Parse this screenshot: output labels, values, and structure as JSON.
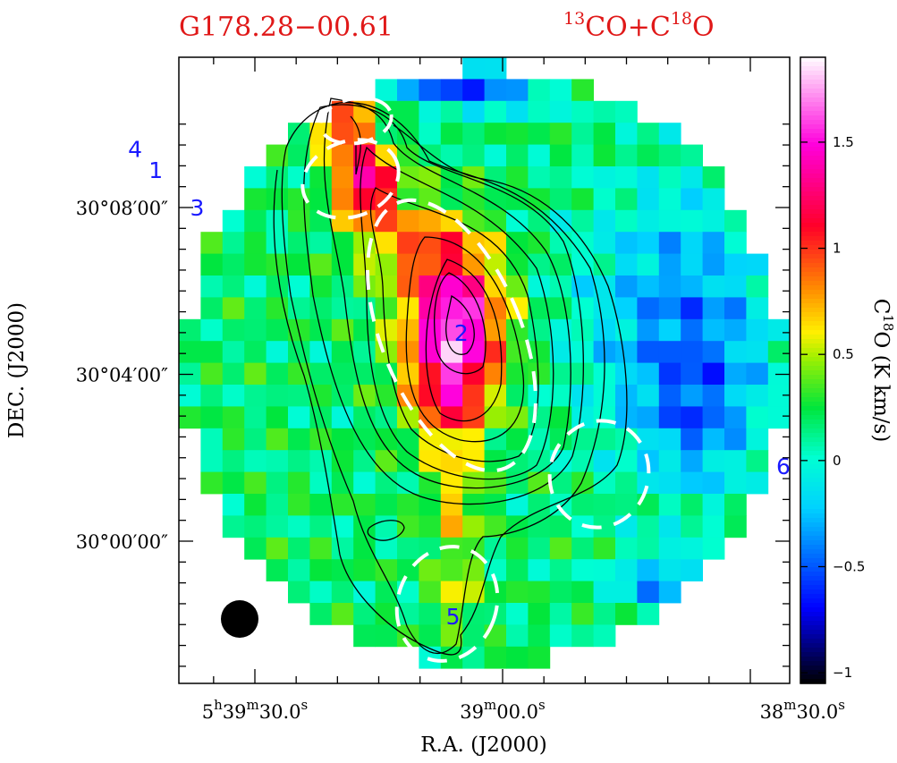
{
  "chart_data": {
    "type": "heatmap",
    "title_left": "G178.28−00.61",
    "title_right": {
      "prefix": "13",
      "a": "CO+C",
      "sup": "18",
      "b": "O"
    },
    "xlabel": "R.A. (J2000)",
    "ylabel": "DEC. (J2000)",
    "colorbar_label": {
      "a": "C",
      "sup": "18",
      "b": "O (K km/s)"
    },
    "colorbar_range": [
      -1.05,
      1.9
    ],
    "colorbar_ticks": [
      "1.5",
      "1",
      "0.5",
      "0",
      "−0.5",
      "−1"
    ],
    "colorbar_tick_values": [
      1.5,
      1,
      0.5,
      0,
      -0.5,
      -1
    ],
    "x_ticks": [
      {
        "h": "5",
        "hu": "h",
        "m": "39",
        "mu": "m",
        "s": "30.0",
        "su": "s",
        "ra_sec": 30.0
      },
      {
        "h": "",
        "hu": "",
        "m": "39",
        "mu": "m",
        "s": "00.0",
        "su": "s",
        "ra_sec": 0.0
      },
      {
        "h": "",
        "hu": "",
        "m": "38",
        "mu": "m",
        "s": "30.0",
        "su": "s",
        "ra_sec": -30.0
      }
    ],
    "y_ticks": [
      {
        "label": "30°08′00″",
        "arcmin": 8
      },
      {
        "label": "30°04′00″",
        "arcmin": 4
      },
      {
        "label": "30°00′00″",
        "arcmin": 0
      }
    ],
    "sources": [
      {
        "label": "1",
        "ra_sec": 42.0,
        "dec_arcmin": 8.9
      },
      {
        "label": "2",
        "ra_sec": 5.0,
        "dec_arcmin": 5.0
      },
      {
        "label": "3",
        "ra_sec": 37.0,
        "dec_arcmin": 8.0
      },
      {
        "label": "4",
        "ra_sec": 44.5,
        "dec_arcmin": 9.4
      },
      {
        "label": "5",
        "ra_sec": 6.0,
        "dec_arcmin": -1.8
      },
      {
        "label": "6",
        "ra_sec": -34.0,
        "dec_arcmin": 1.8
      }
    ],
    "beam": "filled circle, lower left",
    "data_description": "integrated intensity map with peaks near sources 2 and 3, black contours and white dashed source ellipses"
  }
}
